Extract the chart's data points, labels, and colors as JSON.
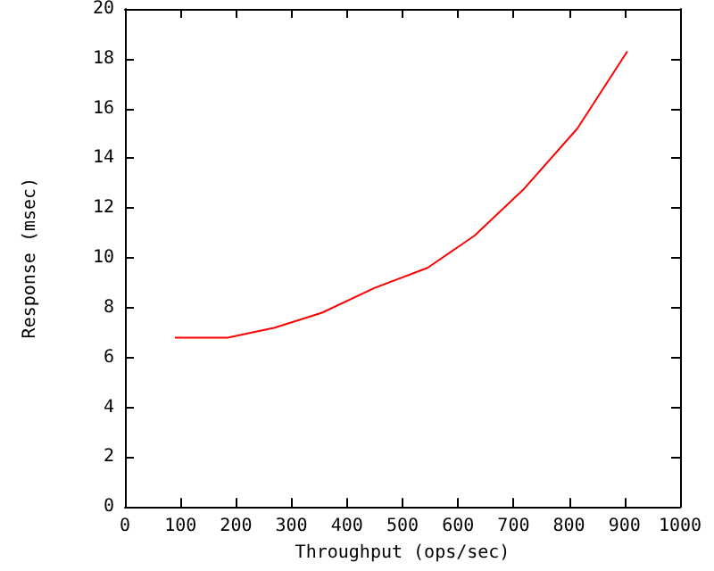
{
  "chart_data": {
    "type": "line",
    "xlabel": "Throughput (ops/sec)",
    "ylabel": "Response (msec)",
    "x": [
      90,
      185,
      270,
      355,
      450,
      545,
      630,
      720,
      815,
      905
    ],
    "series": [
      {
        "color": "#ff0000",
        "values": [
          6.8,
          6.8,
          7.2,
          7.8,
          8.8,
          9.6,
          10.9,
          12.8,
          15.2,
          18.3
        ]
      }
    ],
    "xlim": [
      0,
      1000
    ],
    "xticks": [
      0,
      100,
      200,
      300,
      400,
      500,
      600,
      700,
      800,
      900,
      1000
    ],
    "ylim": [
      0,
      20
    ],
    "yticks": [
      0,
      2,
      4,
      6,
      8,
      10,
      12,
      14,
      16,
      18,
      20
    ],
    "grid": false,
    "marker": "none",
    "line_style": "solid"
  }
}
